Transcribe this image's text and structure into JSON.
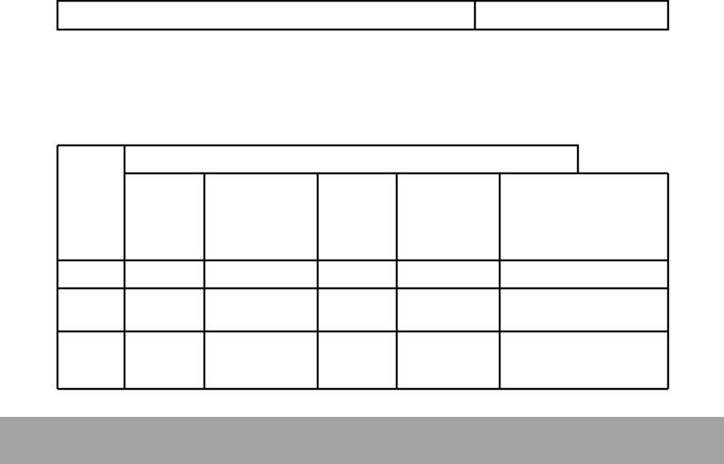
{
  "top_table": {
    "cells": [
      "",
      ""
    ]
  },
  "main_table": {
    "group_header": "",
    "row_header": "",
    "column_headers": [
      "",
      "",
      "",
      "",
      "",
      ""
    ],
    "rows": [
      [
        "",
        "",
        "",
        "",
        "",
        "",
        ""
      ],
      [
        "",
        "",
        "",
        "",
        "",
        "",
        ""
      ],
      [
        "",
        "",
        "",
        "",
        "",
        "",
        ""
      ]
    ]
  },
  "colors": {
    "border": "#000000",
    "footer": "#a3a3a3"
  }
}
